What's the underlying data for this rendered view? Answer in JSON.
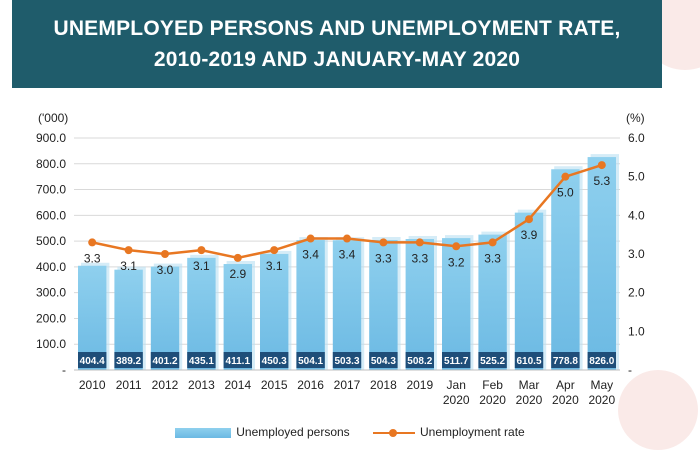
{
  "title_line1": "UNEMPLOYED PERSONS AND UNEMPLOYMENT RATE,",
  "title_line2": "2010-2019 AND JANUARY-MAY 2020",
  "chart_data": {
    "type": "bar",
    "categories": [
      [
        "2010"
      ],
      [
        "2011"
      ],
      [
        "2012"
      ],
      [
        "2013"
      ],
      [
        "2014"
      ],
      [
        "2015"
      ],
      [
        "2016"
      ],
      [
        "2017"
      ],
      [
        "2018"
      ],
      [
        "2019"
      ],
      [
        "Jan",
        "2020"
      ],
      [
        "Feb",
        "2020"
      ],
      [
        "Mar",
        "2020"
      ],
      [
        "Apr",
        "2020"
      ],
      [
        "May",
        "2020"
      ]
    ],
    "series": [
      {
        "name": "Unemployed persons",
        "type": "bar",
        "axis": "left",
        "values": [
          404.4,
          389.2,
          401.2,
          435.1,
          411.1,
          450.3,
          504.1,
          503.3,
          504.3,
          508.2,
          511.7,
          525.2,
          610.5,
          778.8,
          826.0
        ],
        "labels": [
          "404.4",
          "389.2",
          "401.2",
          "435.1",
          "411.1",
          "450.3",
          "504.1",
          "503.3",
          "504.3",
          "508.2",
          "511.7",
          "525.2",
          "610.5",
          "778.8",
          "826.0"
        ]
      },
      {
        "name": "Unemployment rate",
        "type": "line",
        "axis": "right",
        "values": [
          3.3,
          3.1,
          3.0,
          3.1,
          2.9,
          3.1,
          3.4,
          3.4,
          3.3,
          3.3,
          3.2,
          3.3,
          3.9,
          5.0,
          5.3
        ],
        "labels": [
          "3.3",
          "3.1",
          "3.0",
          "3.1",
          "2.9",
          "3.1",
          "3.4",
          "3.4",
          "3.3",
          "3.3",
          "3.2",
          "3.3",
          "3.9",
          "5.0",
          "5.3"
        ]
      }
    ],
    "y_left": {
      "label": "('000)",
      "lim": [
        0,
        900
      ],
      "ticks": [
        0,
        100,
        200,
        300,
        400,
        500,
        600,
        700,
        800,
        900
      ],
      "tick_labels": [
        "-",
        "100.0",
        "200.0",
        "300.0",
        "400.0",
        "500.0",
        "600.0",
        "700.0",
        "800.0",
        "900.0"
      ]
    },
    "y_right": {
      "label": "(%)",
      "lim": [
        0,
        6
      ],
      "ticks": [
        0,
        1,
        2,
        3,
        4,
        5,
        6
      ],
      "tick_labels": [
        "-",
        "1.0",
        "2.0",
        "3.0",
        "4.0",
        "5.0",
        "6.0"
      ]
    },
    "grid": true,
    "legend": "bottom-center",
    "colors": {
      "bar_top": "#8fd0ee",
      "bar_bottom": "#6bb9e3",
      "bar_label_bg": "#1f4e79",
      "bar_label_text": "#ffffff",
      "line": "#e87722",
      "grid": "#d9d9d9",
      "axis_text": "#222222"
    }
  }
}
